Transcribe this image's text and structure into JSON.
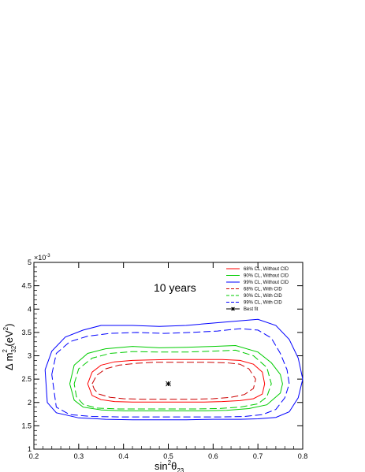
{
  "chart_data": {
    "type": "line",
    "annotation": "10 years",
    "xlabel": {
      "main": "sin",
      "sup": "2",
      "sym": "θ",
      "sub": "23"
    },
    "ylabel": {
      "main": "Δ m",
      "sub": "32",
      "sup": "2",
      "unit_pre": " (eV",
      "unit_sup": "2",
      "unit_post": ")"
    },
    "y_multiplier": "×10",
    "y_multiplier_exp": "-3",
    "xlim": [
      0.2,
      0.8
    ],
    "ylim": [
      1.0,
      5.0
    ],
    "xticks": [
      "0.2",
      "0.3",
      "0.4",
      "0.5",
      "0.6",
      "0.7",
      "0.8"
    ],
    "yticks": [
      "1",
      "1.5",
      "2",
      "2.5",
      "3",
      "3.5",
      "4",
      "4.5",
      "5"
    ],
    "grid": false,
    "legend_position": "top-right",
    "best_fit": {
      "name": "Best fit",
      "x": 0.5,
      "y": 2.4
    },
    "series": [
      {
        "name": "68% CL, Without CID",
        "color": "#ff0000",
        "dash": "solid",
        "x": [
          0.32,
          0.33,
          0.35,
          0.38,
          0.42,
          0.46,
          0.5,
          0.54,
          0.58,
          0.62,
          0.66,
          0.69,
          0.71,
          0.715,
          0.71,
          0.69,
          0.66,
          0.62,
          0.58,
          0.54,
          0.5,
          0.46,
          0.42,
          0.38,
          0.35,
          0.33,
          0.32
        ],
        "y": [
          2.4,
          2.65,
          2.8,
          2.87,
          2.9,
          2.91,
          2.92,
          2.92,
          2.92,
          2.92,
          2.9,
          2.82,
          2.65,
          2.4,
          2.18,
          2.08,
          2.04,
          2.02,
          2.01,
          2.01,
          2.01,
          2.01,
          2.01,
          2.02,
          2.06,
          2.15,
          2.4
        ]
      },
      {
        "name": "90% CL, Without CID",
        "color": "#00cc00",
        "dash": "solid",
        "x": [
          0.28,
          0.29,
          0.32,
          0.36,
          0.42,
          0.48,
          0.54,
          0.6,
          0.65,
          0.7,
          0.73,
          0.75,
          0.755,
          0.75,
          0.72,
          0.68,
          0.63,
          0.58,
          0.52,
          0.46,
          0.4,
          0.35,
          0.31,
          0.29,
          0.28
        ],
        "y": [
          2.4,
          2.8,
          3.05,
          3.15,
          3.2,
          3.17,
          3.18,
          3.2,
          3.22,
          3.08,
          2.85,
          2.6,
          2.4,
          2.2,
          1.95,
          1.87,
          1.83,
          1.82,
          1.82,
          1.82,
          1.82,
          1.84,
          1.9,
          2.05,
          2.4
        ]
      },
      {
        "name": "99% CL, Without CID",
        "color": "#0000ff",
        "dash": "solid",
        "x": [
          0.225,
          0.24,
          0.27,
          0.31,
          0.35,
          0.42,
          0.48,
          0.54,
          0.6,
          0.66,
          0.7,
          0.74,
          0.77,
          0.79,
          0.8,
          0.79,
          0.77,
          0.74,
          0.7,
          0.66,
          0.6,
          0.54,
          0.48,
          0.42,
          0.36,
          0.3,
          0.25,
          0.23,
          0.225
        ],
        "y": [
          2.7,
          3.1,
          3.4,
          3.55,
          3.65,
          3.65,
          3.63,
          3.65,
          3.7,
          3.75,
          3.78,
          3.65,
          3.35,
          2.95,
          2.5,
          2.1,
          1.8,
          1.68,
          1.65,
          1.64,
          1.64,
          1.63,
          1.63,
          1.63,
          1.64,
          1.67,
          1.78,
          2.0,
          2.7
        ]
      },
      {
        "name": "68% CL, With CID",
        "color": "#cc0000",
        "dash": "dashed",
        "x": [
          0.33,
          0.34,
          0.36,
          0.39,
          0.43,
          0.47,
          0.51,
          0.55,
          0.59,
          0.63,
          0.66,
          0.68,
          0.695,
          0.69,
          0.67,
          0.64,
          0.6,
          0.56,
          0.52,
          0.48,
          0.44,
          0.4,
          0.37,
          0.345,
          0.335,
          0.33
        ],
        "y": [
          2.4,
          2.58,
          2.72,
          2.8,
          2.84,
          2.86,
          2.86,
          2.86,
          2.86,
          2.85,
          2.82,
          2.72,
          2.5,
          2.3,
          2.17,
          2.11,
          2.08,
          2.07,
          2.07,
          2.07,
          2.07,
          2.08,
          2.11,
          2.18,
          2.28,
          2.4
        ]
      },
      {
        "name": "90% CL, With CID",
        "color": "#00cc00",
        "dash": "dashed",
        "x": [
          0.29,
          0.3,
          0.33,
          0.37,
          0.42,
          0.48,
          0.54,
          0.6,
          0.65,
          0.69,
          0.72,
          0.73,
          0.72,
          0.7,
          0.66,
          0.61,
          0.56,
          0.5,
          0.44,
          0.39,
          0.34,
          0.31,
          0.295,
          0.29
        ],
        "y": [
          2.4,
          2.72,
          2.95,
          3.05,
          3.09,
          3.08,
          3.08,
          3.1,
          3.12,
          3.0,
          2.75,
          2.4,
          2.12,
          1.97,
          1.9,
          1.87,
          1.86,
          1.86,
          1.86,
          1.86,
          1.88,
          1.96,
          2.12,
          2.4
        ]
      },
      {
        "name": "99% CL, With CID",
        "color": "#0000ff",
        "dash": "dashed",
        "x": [
          0.24,
          0.25,
          0.28,
          0.32,
          0.37,
          0.43,
          0.49,
          0.55,
          0.61,
          0.66,
          0.7,
          0.73,
          0.75,
          0.765,
          0.77,
          0.76,
          0.74,
          0.71,
          0.67,
          0.62,
          0.57,
          0.51,
          0.45,
          0.39,
          0.33,
          0.28,
          0.25,
          0.24
        ],
        "y": [
          2.6,
          3.05,
          3.3,
          3.42,
          3.48,
          3.5,
          3.48,
          3.5,
          3.53,
          3.58,
          3.55,
          3.38,
          3.05,
          2.7,
          2.4,
          2.1,
          1.85,
          1.74,
          1.7,
          1.69,
          1.69,
          1.69,
          1.69,
          1.69,
          1.7,
          1.74,
          1.9,
          2.6
        ]
      }
    ]
  }
}
